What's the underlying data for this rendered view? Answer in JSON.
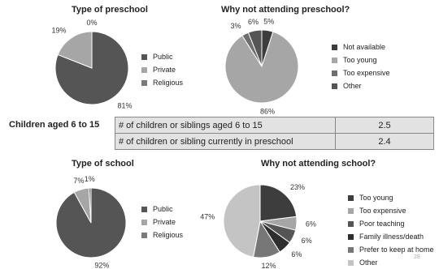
{
  "stats_section": {
    "label": "Children aged 6 to 15",
    "rows": [
      {
        "question": "# of children or siblings aged 6 to 15",
        "value": "2.5"
      },
      {
        "question": "# of children or sibling currently in preschool",
        "value": "2.4"
      }
    ]
  },
  "page_number": "28",
  "chart_data": [
    {
      "type": "pie",
      "title": "Type of preschool",
      "slices": [
        {
          "name": "Public",
          "value": 81,
          "label": "81%",
          "color": "#555555"
        },
        {
          "name": "Private",
          "value": 19,
          "label": "19%",
          "color": "#a6a6a6"
        },
        {
          "name": "Religious",
          "value": 0,
          "label": "0%",
          "color": "#7a7a7a"
        }
      ],
      "legend": "right"
    },
    {
      "type": "pie",
      "title": "Why not attending preschool?",
      "slices": [
        {
          "name": "Not available",
          "value": 5,
          "label": "5%",
          "color": "#3d3d3d"
        },
        {
          "name": "Too young",
          "value": 86,
          "label": "86%",
          "color": "#a6a6a6"
        },
        {
          "name": "Too expensive",
          "value": 3,
          "label": "3%",
          "color": "#6e6e6e"
        },
        {
          "name": "Other",
          "value": 6,
          "label": "6%",
          "color": "#555555"
        }
      ],
      "legend": "right"
    },
    {
      "type": "pie",
      "title": "Type of school",
      "slices": [
        {
          "name": "Public",
          "value": 92,
          "label": "92%",
          "color": "#555555"
        },
        {
          "name": "Private",
          "value": 7,
          "label": "7%",
          "color": "#a6a6a6"
        },
        {
          "name": "Religious",
          "value": 1,
          "label": "1%",
          "color": "#7a7a7a"
        }
      ],
      "legend": "right"
    },
    {
      "type": "pie",
      "title": "Why not attending school?",
      "slices": [
        {
          "name": "Too young",
          "value": 23,
          "label": "23%",
          "color": "#3d3d3d"
        },
        {
          "name": "Too expensive",
          "value": 6,
          "label": "6%",
          "color": "#a6a6a6"
        },
        {
          "name": "Poor teaching",
          "value": 6,
          "label": "6%",
          "color": "#555555"
        },
        {
          "name": "Family illness/death",
          "value": 6,
          "label": "6%",
          "color": "#2e2e2e"
        },
        {
          "name": "Prefer to keep at home",
          "value": 12,
          "label": "12%",
          "color": "#777777"
        },
        {
          "name": "Other",
          "value": 47,
          "label": "47%",
          "color": "#c4c4c4"
        }
      ],
      "legend": "right"
    }
  ]
}
